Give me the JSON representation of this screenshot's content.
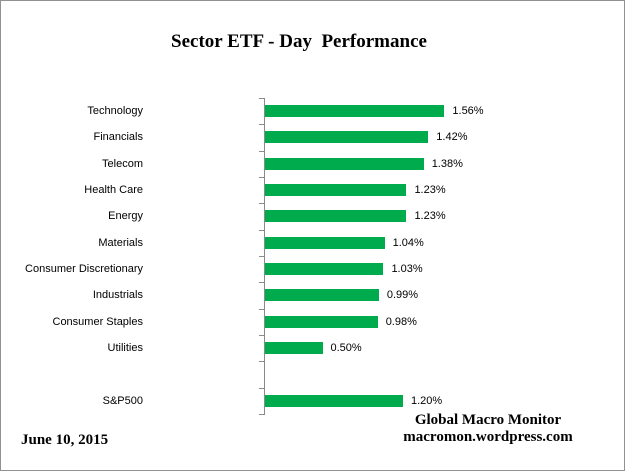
{
  "title": "Sector ETF - Day  Performance",
  "footer": {
    "date": "June 10, 2015",
    "source_name": "Global Macro Monitor",
    "source_url": "macromon.wordpress.com"
  },
  "colors": {
    "bar": "#00AB4E",
    "axis": "#8A8A8A",
    "border": "#919191"
  },
  "chart_data": {
    "type": "bar",
    "orientation": "horizontal",
    "title": "Sector ETF - Day  Performance",
    "xlabel": "",
    "ylabel": "",
    "xlim": [
      0,
      1.8
    ],
    "grid": false,
    "legend": false,
    "categories": [
      "Technology",
      "Financials",
      "Telecom",
      "Health Care",
      "Energy",
      "Materials",
      "Consumer Discretionary",
      "Industrials",
      "Consumer Staples",
      "Utilities",
      "",
      "S&P500"
    ],
    "values": [
      1.56,
      1.42,
      1.38,
      1.23,
      1.23,
      1.04,
      1.03,
      0.99,
      0.98,
      0.5,
      null,
      1.2
    ],
    "value_labels": [
      "1.56%",
      "1.42%",
      "1.38%",
      "1.23%",
      "1.23%",
      "1.04%",
      "1.03%",
      "0.99%",
      "0.98%",
      "0.50%",
      "",
      "1.20%"
    ]
  }
}
